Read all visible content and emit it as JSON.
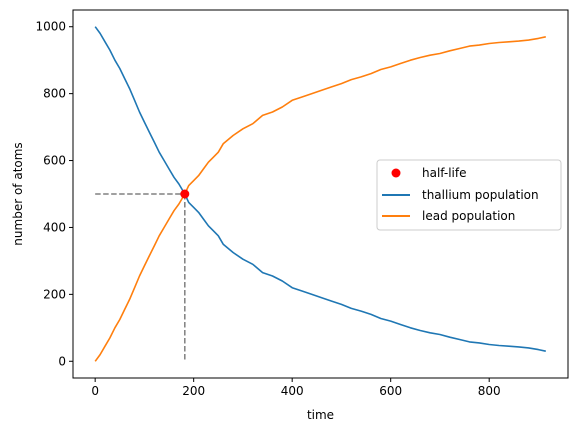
{
  "chart_data": {
    "type": "line",
    "title": "",
    "xlabel": "time",
    "ylabel": "number of atoms",
    "xlim": [
      -45,
      960
    ],
    "ylim": [
      -50,
      1050
    ],
    "x_ticks": [
      0,
      200,
      400,
      600,
      800
    ],
    "y_ticks": [
      0,
      200,
      400,
      600,
      800,
      1000
    ],
    "grid": false,
    "legend_position": "center-right",
    "half_life": {
      "label": "half-life",
      "x": 182,
      "y": 500,
      "color": "#ff0000"
    },
    "guide_color": "#808080",
    "series": [
      {
        "name": "thallium population",
        "color": "#1f77b4",
        "x": [
          0,
          10,
          20,
          30,
          40,
          50,
          60,
          70,
          80,
          90,
          100,
          110,
          120,
          130,
          140,
          150,
          160,
          170,
          182,
          190,
          200,
          210,
          220,
          230,
          240,
          250,
          260,
          280,
          300,
          320,
          340,
          360,
          380,
          400,
          420,
          440,
          460,
          480,
          500,
          520,
          540,
          560,
          580,
          600,
          620,
          640,
          660,
          680,
          700,
          720,
          740,
          760,
          780,
          800,
          820,
          840,
          860,
          880,
          900,
          915
        ],
        "values": [
          1000,
          980,
          955,
          930,
          900,
          875,
          845,
          815,
          780,
          745,
          715,
          685,
          655,
          625,
          600,
          575,
          550,
          530,
          500,
          475,
          460,
          445,
          425,
          405,
          390,
          375,
          350,
          325,
          305,
          290,
          265,
          255,
          240,
          220,
          210,
          200,
          190,
          180,
          170,
          158,
          150,
          140,
          128,
          120,
          110,
          100,
          92,
          85,
          80,
          72,
          65,
          58,
          55,
          50,
          47,
          45,
          43,
          40,
          35,
          30
        ]
      },
      {
        "name": "lead population",
        "color": "#ff7f0e",
        "x": [
          0,
          10,
          20,
          30,
          40,
          50,
          60,
          70,
          80,
          90,
          100,
          110,
          120,
          130,
          140,
          150,
          160,
          170,
          182,
          190,
          200,
          210,
          220,
          230,
          240,
          250,
          260,
          280,
          300,
          320,
          340,
          360,
          380,
          400,
          420,
          440,
          460,
          480,
          500,
          520,
          540,
          560,
          580,
          600,
          620,
          640,
          660,
          680,
          700,
          720,
          740,
          760,
          780,
          800,
          820,
          840,
          860,
          880,
          900,
          915
        ],
        "values": [
          0,
          20,
          45,
          70,
          100,
          125,
          155,
          185,
          220,
          255,
          285,
          315,
          345,
          375,
          400,
          425,
          450,
          470,
          500,
          525,
          540,
          555,
          575,
          595,
          610,
          625,
          650,
          675,
          695,
          710,
          735,
          745,
          760,
          780,
          790,
          800,
          810,
          820,
          830,
          842,
          850,
          860,
          872,
          880,
          890,
          900,
          908,
          915,
          920,
          928,
          935,
          942,
          945,
          950,
          953,
          955,
          957,
          960,
          965,
          970
        ]
      }
    ]
  }
}
